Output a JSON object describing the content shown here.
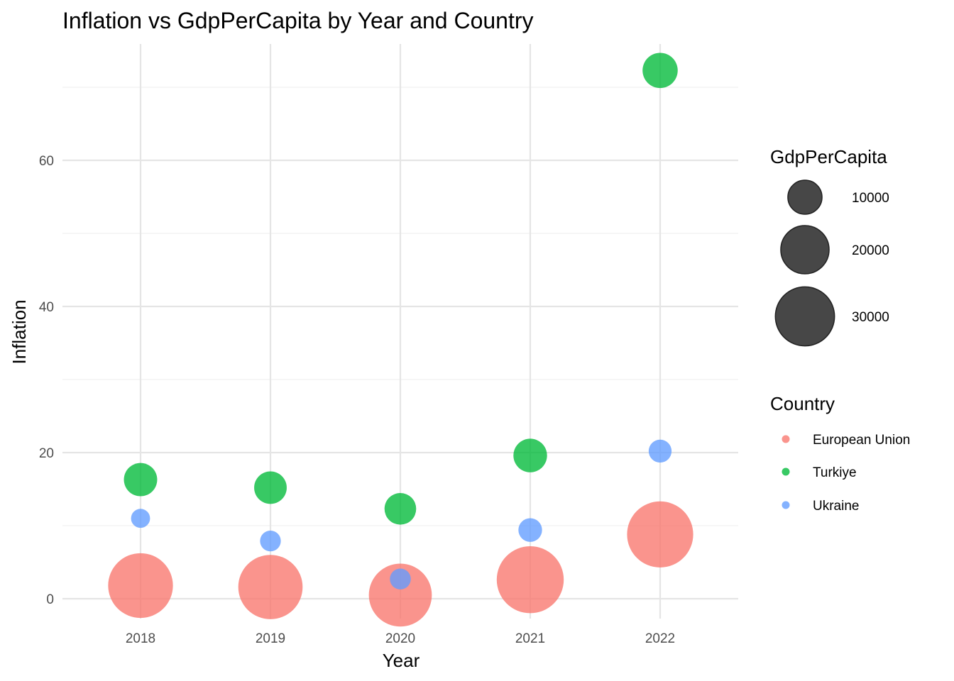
{
  "chart_data": {
    "type": "scatter",
    "title": "Inflation vs GdpPerCapita by Year and Country",
    "xlabel": "Year",
    "ylabel": "Inflation",
    "x_categories": [
      "2018",
      "2019",
      "2020",
      "2021",
      "2022"
    ],
    "yticks": [
      "0",
      "20",
      "40",
      "60"
    ],
    "ylim": [
      -2.5,
      76
    ],
    "grid": true,
    "size_legend": {
      "title": "GdpPerCapita",
      "entries": [
        {
          "label": "10000",
          "value": 10000
        },
        {
          "label": "20000",
          "value": 20000
        },
        {
          "label": "30000",
          "value": 30000
        }
      ]
    },
    "color_legend": {
      "title": "Country",
      "placement": "right"
    },
    "series": [
      {
        "name": "European Union",
        "color": "#F8766D",
        "points": [
          {
            "x": "2018",
            "inflation": 1.8,
            "gdp": 36000
          },
          {
            "x": "2019",
            "inflation": 1.6,
            "gdp": 35500
          },
          {
            "x": "2020",
            "inflation": 0.5,
            "gdp": 34000
          },
          {
            "x": "2021",
            "inflation": 2.6,
            "gdp": 38500
          },
          {
            "x": "2022",
            "inflation": 8.8,
            "gdp": 37500
          }
        ]
      },
      {
        "name": "Turkiye",
        "color": "#00BA38",
        "points": [
          {
            "x": "2018",
            "inflation": 16.3,
            "gdp": 9500
          },
          {
            "x": "2019",
            "inflation": 15.2,
            "gdp": 9100
          },
          {
            "x": "2020",
            "inflation": 12.3,
            "gdp": 8600
          },
          {
            "x": "2021",
            "inflation": 19.6,
            "gdp": 9700
          },
          {
            "x": "2022",
            "inflation": 72.3,
            "gdp": 10600
          }
        ]
      },
      {
        "name": "Ukraine",
        "color": "#619CFF",
        "points": [
          {
            "x": "2018",
            "inflation": 11.0,
            "gdp": 3100
          },
          {
            "x": "2019",
            "inflation": 7.9,
            "gdp": 3700
          },
          {
            "x": "2020",
            "inflation": 2.7,
            "gdp": 3750
          },
          {
            "x": "2021",
            "inflation": 9.4,
            "gdp": 4800
          },
          {
            "x": "2022",
            "inflation": 20.2,
            "gdp": 4500
          }
        ]
      }
    ]
  }
}
